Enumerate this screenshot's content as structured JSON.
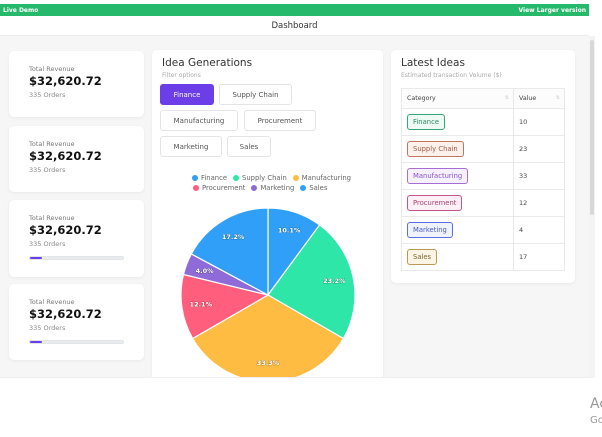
{
  "topbar": {
    "left_label": "Live Demo",
    "right_link": "View Larger version",
    "color": "#27b96b"
  },
  "header": {
    "title": "Dashboard"
  },
  "stats": [
    {
      "label": "Total Revenue",
      "value": "$32,620.72",
      "sub": "335 Orders",
      "progress": false
    },
    {
      "label": "Total Revenue",
      "value": "$32,620.72",
      "sub": "335 Orders",
      "progress": false
    },
    {
      "label": "Total Revenue",
      "value": "$32,620.72",
      "sub": "335 Orders",
      "progress": true,
      "progress_pct": 12
    },
    {
      "label": "Total Revenue",
      "value": "$32,620.72",
      "sub": "335 Orders",
      "progress": true,
      "progress_pct": 12
    }
  ],
  "ideas": {
    "title": "Idea Generations",
    "subtitle": "Filter options",
    "filters": [
      {
        "label": "Finance",
        "active": true
      },
      {
        "label": "Supply Chain",
        "active": false
      },
      {
        "label": "Manufacturing",
        "active": false
      },
      {
        "label": "Procurement",
        "active": false
      },
      {
        "label": "Marketing",
        "active": false
      },
      {
        "label": "Sales",
        "active": false
      }
    ],
    "legend": [
      {
        "label": "Finance",
        "color": "#2f9ff8"
      },
      {
        "label": "Supply Chain",
        "color": "#2ee6a8"
      },
      {
        "label": "Manufacturing",
        "color": "#ffbc42"
      },
      {
        "label": "Procurement",
        "color": "#ff5e7d"
      },
      {
        "label": "Marketing",
        "color": "#8e6bd8"
      },
      {
        "label": "Sales",
        "color": "#2f9ff8"
      }
    ]
  },
  "chart_data": {
    "type": "pie",
    "title": "",
    "categories": [
      "Finance",
      "Supply Chain",
      "Manufacturing",
      "Procurement",
      "Marketing",
      "Sales"
    ],
    "values": [
      10,
      23,
      33,
      12,
      4,
      17
    ],
    "percent_labels": [
      "10.1%",
      "23.2%",
      "33.3%",
      "12.1%",
      "4.0%",
      "17.2%"
    ],
    "colors": [
      "#2f9ff8",
      "#2ee6a8",
      "#ffbc42",
      "#ff5e7d",
      "#8e6bd8",
      "#2f9ff8"
    ],
    "legend_position": "top"
  },
  "latest": {
    "title": "Latest Ideas",
    "subtitle": "Estimated transaction Volume ($)",
    "columns": [
      "Category",
      "Value"
    ],
    "sort_icon": "⇅",
    "rows": [
      {
        "category": "Finance",
        "value": "10",
        "border": "#3aa57a",
        "text": "#2b8a62",
        "bg": "#eefaf4"
      },
      {
        "category": "Supply Chain",
        "value": "23",
        "border": "#c0765f",
        "text": "#a35a44",
        "bg": "#fdf1ec"
      },
      {
        "category": "Manufacturing",
        "value": "33",
        "border": "#a66dd8",
        "text": "#8a52c2",
        "bg": "#f7f0fd"
      },
      {
        "category": "Procurement",
        "value": "12",
        "border": "#c5558d",
        "text": "#a83f73",
        "bg": "#fdf0f6"
      },
      {
        "category": "Marketing",
        "value": "4",
        "border": "#5b6fe0",
        "text": "#4a5cc8",
        "bg": "#f0f2fd"
      },
      {
        "category": "Sales",
        "value": "17",
        "border": "#b89a55",
        "text": "#7d6530",
        "bg": "#fbf5e6"
      }
    ]
  },
  "watermark": {
    "line1": "Ac",
    "line2": "Go"
  }
}
